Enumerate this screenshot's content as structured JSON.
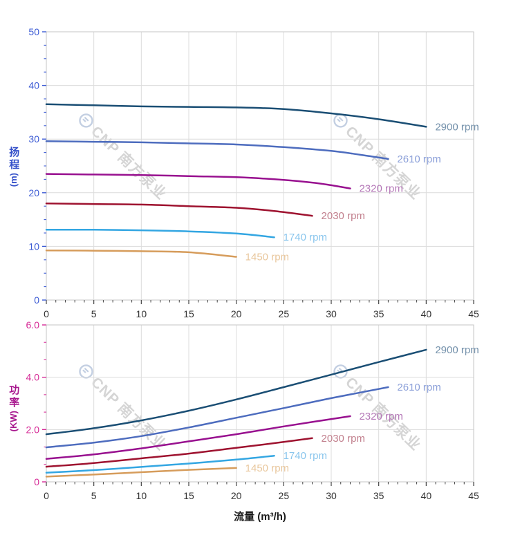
{
  "x_title": "流量 (m³/h)",
  "watermark": {
    "text": "CNP 南方泵业",
    "logo": "cnp-circle-logo",
    "text_color": "#d5d5d5",
    "logo_color": "#c3cfe2"
  },
  "style": {
    "background": "#ffffff",
    "grid_color": "#dcdcdc",
    "border_color": "#c6c6c6",
    "x_tick_color": "#444444",
    "x_label_color": "#333333",
    "x_title_color": "#1a1a1a"
  },
  "chart_data": [
    {
      "type": "line",
      "title": "",
      "xlabel": "流量 (m³/h)",
      "ylabel": "扬程 (m)",
      "y_title": "扬程",
      "y_unit": "(m)",
      "xlim": [
        0,
        45
      ],
      "ylim": [
        0,
        50
      ],
      "x_major": 5,
      "x_minor": 1,
      "y_major": 10,
      "y_minor": 2.5,
      "x_ticks": [
        "0",
        "5",
        "10",
        "15",
        "20",
        "25",
        "30",
        "35",
        "40",
        "45"
      ],
      "y_ticks": [
        "0",
        "10",
        "20",
        "30",
        "40",
        "50"
      ],
      "axis_color": "#3c5bd4",
      "title_color": "#3450c9",
      "grid": true,
      "legend_position": "line-end-labels",
      "series": [
        {
          "name": "2900 rpm",
          "color": "#1a4e74",
          "label_color": "#7491ab",
          "points": [
            [
              0,
              36.5
            ],
            [
              5,
              36.3
            ],
            [
              10,
              36.1
            ],
            [
              15,
              36.0
            ],
            [
              20,
              35.9
            ],
            [
              25,
              35.6
            ],
            [
              30,
              34.8
            ],
            [
              35,
              33.7
            ],
            [
              40,
              32.3
            ]
          ]
        },
        {
          "name": "2610 rpm",
          "color": "#4d6cbe",
          "label_color": "#8da1d9",
          "points": [
            [
              0,
              29.6
            ],
            [
              5,
              29.5
            ],
            [
              10,
              29.4
            ],
            [
              15,
              29.2
            ],
            [
              20,
              29.0
            ],
            [
              25,
              28.5
            ],
            [
              30,
              27.8
            ],
            [
              33,
              27.1
            ],
            [
              36,
              26.3
            ]
          ]
        },
        {
          "name": "2320 rpm",
          "color": "#98108f",
          "label_color": "#b579b8",
          "points": [
            [
              0,
              23.5
            ],
            [
              5,
              23.4
            ],
            [
              10,
              23.3
            ],
            [
              15,
              23.1
            ],
            [
              20,
              22.9
            ],
            [
              25,
              22.4
            ],
            [
              28,
              21.9
            ],
            [
              30,
              21.4
            ],
            [
              32,
              20.8
            ]
          ]
        },
        {
          "name": "2030 rpm",
          "color": "#9e122f",
          "label_color": "#c2808e",
          "points": [
            [
              0,
              18.0
            ],
            [
              5,
              17.9
            ],
            [
              10,
              17.8
            ],
            [
              15,
              17.5
            ],
            [
              20,
              17.2
            ],
            [
              24,
              16.6
            ],
            [
              28,
              15.7
            ]
          ]
        },
        {
          "name": "1740 rpm",
          "color": "#33a6e2",
          "label_color": "#8ac6ed",
          "points": [
            [
              0,
              13.1
            ],
            [
              5,
              13.1
            ],
            [
              10,
              13.0
            ],
            [
              15,
              12.8
            ],
            [
              20,
              12.4
            ],
            [
              24,
              11.7
            ]
          ]
        },
        {
          "name": "1450 rpm",
          "color": "#d69c5b",
          "label_color": "#e9c79d",
          "points": [
            [
              0,
              9.25
            ],
            [
              5,
              9.2
            ],
            [
              10,
              9.1
            ],
            [
              15,
              8.9
            ],
            [
              20,
              8.05
            ]
          ]
        }
      ]
    },
    {
      "type": "line",
      "title": "",
      "xlabel": "流量 (m³/h)",
      "ylabel": "功率 (KW)",
      "y_title": "功率",
      "y_unit": "(KW)",
      "xlim": [
        0,
        45
      ],
      "ylim": [
        0,
        6
      ],
      "x_major": 5,
      "x_minor": 1,
      "y_major": 2,
      "y_minor": 0.6667,
      "x_ticks": [
        "0",
        "5",
        "10",
        "15",
        "20",
        "25",
        "30",
        "35",
        "40",
        "45"
      ],
      "y_ticks": [
        "0",
        "2.0",
        "4.0",
        "6.0"
      ],
      "axis_color": "#d62a96",
      "title_color": "#a8188e",
      "grid": true,
      "legend_position": "line-end-labels",
      "series": [
        {
          "name": "2900 rpm",
          "color": "#1a4e74",
          "label_color": "#7491ab",
          "points": [
            [
              0,
              1.82
            ],
            [
              5,
              2.05
            ],
            [
              10,
              2.35
            ],
            [
              15,
              2.72
            ],
            [
              20,
              3.15
            ],
            [
              25,
              3.62
            ],
            [
              30,
              4.1
            ],
            [
              35,
              4.58
            ],
            [
              40,
              5.05
            ]
          ]
        },
        {
          "name": "2610 rpm",
          "color": "#4d6cbe",
          "label_color": "#8da1d9",
          "points": [
            [
              0,
              1.32
            ],
            [
              5,
              1.5
            ],
            [
              10,
              1.75
            ],
            [
              15,
              2.08
            ],
            [
              20,
              2.45
            ],
            [
              25,
              2.82
            ],
            [
              30,
              3.2
            ],
            [
              36,
              3.62
            ]
          ]
        },
        {
          "name": "2320 rpm",
          "color": "#98108f",
          "label_color": "#b579b8",
          "points": [
            [
              0,
              0.88
            ],
            [
              5,
              1.05
            ],
            [
              10,
              1.28
            ],
            [
              15,
              1.55
            ],
            [
              20,
              1.82
            ],
            [
              25,
              2.12
            ],
            [
              32,
              2.51
            ]
          ]
        },
        {
          "name": "2030 rpm",
          "color": "#9e122f",
          "label_color": "#c2808e",
          "points": [
            [
              0,
              0.58
            ],
            [
              5,
              0.72
            ],
            [
              10,
              0.9
            ],
            [
              15,
              1.08
            ],
            [
              20,
              1.3
            ],
            [
              24,
              1.48
            ],
            [
              28,
              1.67
            ]
          ]
        },
        {
          "name": "1740 rpm",
          "color": "#33a6e2",
          "label_color": "#8ac6ed",
          "points": [
            [
              0,
              0.35
            ],
            [
              5,
              0.45
            ],
            [
              10,
              0.57
            ],
            [
              15,
              0.7
            ],
            [
              20,
              0.85
            ],
            [
              24,
              1.0
            ]
          ]
        },
        {
          "name": "1450 rpm",
          "color": "#d69c5b",
          "label_color": "#e9c79d",
          "points": [
            [
              0,
              0.2
            ],
            [
              5,
              0.28
            ],
            [
              10,
              0.37
            ],
            [
              15,
              0.46
            ],
            [
              20,
              0.53
            ]
          ]
        }
      ]
    }
  ]
}
